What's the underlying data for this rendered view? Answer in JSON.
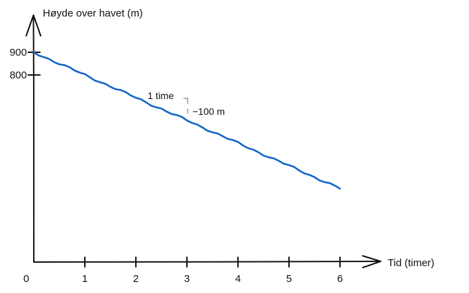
{
  "chart_data": {
    "type": "line",
    "title": "",
    "ylabel": "Høyde over havet (m)",
    "xlabel": "Tid (timer)",
    "x_ticks": [
      0,
      1,
      2,
      3,
      4,
      5,
      6
    ],
    "x_tick_labels": [
      "0",
      "1",
      "2",
      "3",
      "4",
      "5",
      "6"
    ],
    "y_ticks": [
      900,
      800
    ],
    "y_tick_labels": [
      "900",
      "800"
    ],
    "xlim": [
      0,
      6
    ],
    "ylim": [
      -0.2,
      1.0
    ],
    "series": [
      {
        "color": "#1565c8",
        "x": [
          0,
          1,
          2,
          3,
          4,
          5,
          6
        ],
        "y": [
          900,
          800,
          700,
          600,
          500,
          400,
          300
        ]
      }
    ],
    "annotations": {
      "run_label": "1 time",
      "rise_label": "−100 m"
    },
    "grid": false
  }
}
